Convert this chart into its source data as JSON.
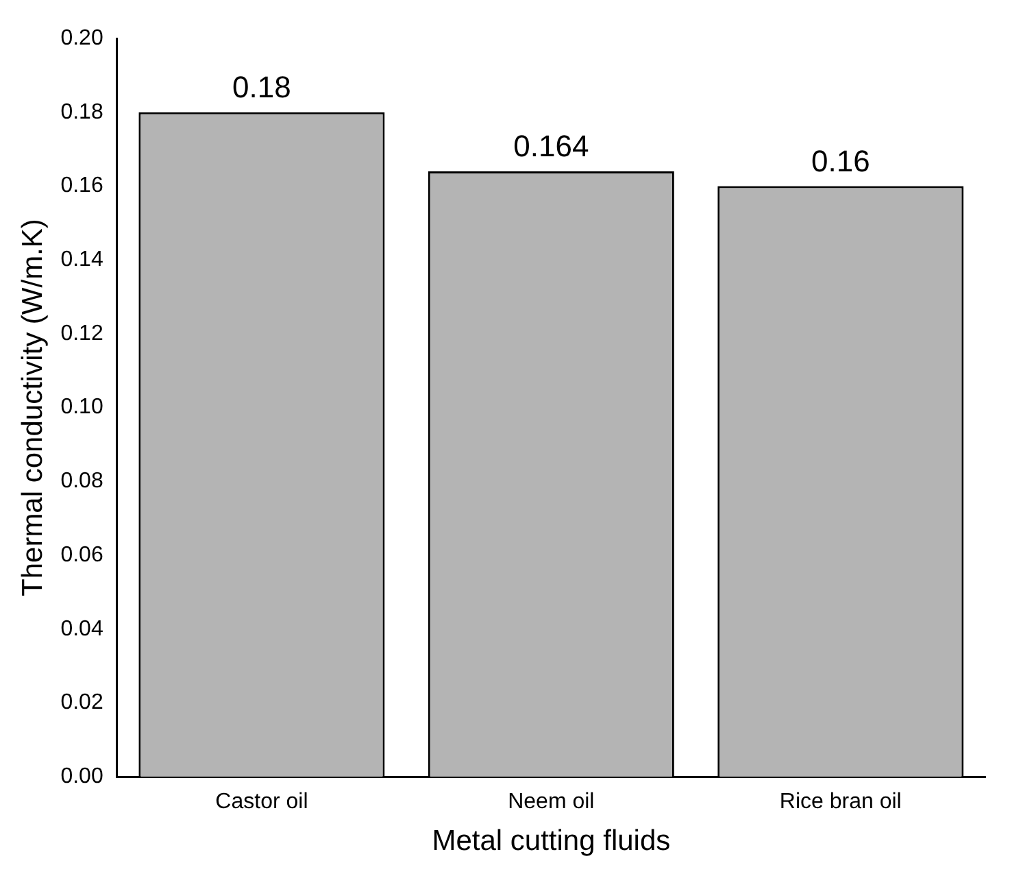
{
  "chart_data": {
    "type": "bar",
    "xlabel": "Metal cutting fluids",
    "ylabel": "Thermal conductivity (W/m.K)",
    "categories": [
      "Castor oil",
      "Neem oil",
      "Rice bran oil"
    ],
    "values": [
      0.18,
      0.164,
      0.16
    ],
    "color": "#b4b4b4",
    "data_labels": true,
    "ylim": [
      0,
      0.2
    ],
    "yticks": [
      {
        "value": 0,
        "label": "0.00"
      },
      {
        "value": 0.02,
        "label": "0.02"
      },
      {
        "value": 0.04,
        "label": "0.04"
      },
      {
        "value": 0.06,
        "label": "0.06"
      },
      {
        "value": 0.08,
        "label": "0.08"
      },
      {
        "value": 0.1,
        "label": "0.10"
      },
      {
        "value": 0.12,
        "label": "0.12"
      },
      {
        "value": 0.14,
        "label": "0.14"
      },
      {
        "value": 0.16,
        "label": "0.16"
      },
      {
        "value": 0.18,
        "label": "0.18"
      },
      {
        "value": 0.2,
        "label": "0.20"
      }
    ],
    "grid": false,
    "legend": false
  }
}
